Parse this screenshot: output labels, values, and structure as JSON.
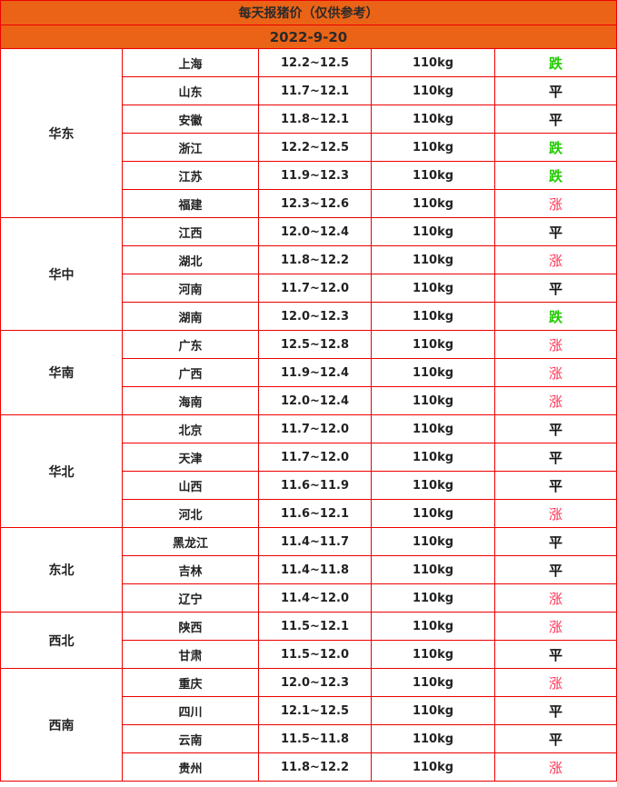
{
  "title": "每天报猪价（仅供参考）",
  "date": "2022-9-20",
  "colors": {
    "header_bg": "#EB6316",
    "border": "#EE0000",
    "down": "#22CC00",
    "up": "#FF3355",
    "flat": "#111111"
  },
  "regions": [
    {
      "name": "华东",
      "rows": [
        {
          "province": "上海",
          "price": "12.2~12.5",
          "weight": "110kg",
          "trend": "跌"
        },
        {
          "province": "山东",
          "price": "11.7~12.1",
          "weight": "110kg",
          "trend": "平"
        },
        {
          "province": "安徽",
          "price": "11.8~12.1",
          "weight": "110kg",
          "trend": "平"
        },
        {
          "province": "浙江",
          "price": "12.2~12.5",
          "weight": "110kg",
          "trend": "跌"
        },
        {
          "province": "江苏",
          "price": "11.9~12.3",
          "weight": "110kg",
          "trend": "跌"
        },
        {
          "province": "福建",
          "price": "12.3~12.6",
          "weight": "110kg",
          "trend": "涨"
        }
      ]
    },
    {
      "name": "华中",
      "rows": [
        {
          "province": "江西",
          "price": "12.0~12.4",
          "weight": "110kg",
          "trend": "平"
        },
        {
          "province": "湖北",
          "price": "11.8~12.2",
          "weight": "110kg",
          "trend": "涨"
        },
        {
          "province": "河南",
          "price": "11.7~12.0",
          "weight": "110kg",
          "trend": "平"
        },
        {
          "province": "湖南",
          "price": "12.0~12.3",
          "weight": "110kg",
          "trend": "跌"
        }
      ]
    },
    {
      "name": "华南",
      "rows": [
        {
          "province": "广东",
          "price": "12.5~12.8",
          "weight": "110kg",
          "trend": "涨"
        },
        {
          "province": "广西",
          "price": "11.9~12.4",
          "weight": "110kg",
          "trend": "涨"
        },
        {
          "province": "海南",
          "price": "12.0~12.4",
          "weight": "110kg",
          "trend": "涨"
        }
      ]
    },
    {
      "name": "华北",
      "rows": [
        {
          "province": "北京",
          "price": "11.7~12.0",
          "weight": "110kg",
          "trend": "平"
        },
        {
          "province": "天津",
          "price": "11.7~12.0",
          "weight": "110kg",
          "trend": "平"
        },
        {
          "province": "山西",
          "price": "11.6~11.9",
          "weight": "110kg",
          "trend": "平"
        },
        {
          "province": "河北",
          "price": "11.6~12.1",
          "weight": "110kg",
          "trend": "涨"
        }
      ]
    },
    {
      "name": "东北",
      "rows": [
        {
          "province": "黑龙江",
          "price": "11.4~11.7",
          "weight": "110kg",
          "trend": "平"
        },
        {
          "province": "吉林",
          "price": "11.4~11.8",
          "weight": "110kg",
          "trend": "平"
        },
        {
          "province": "辽宁",
          "price": "11.4~12.0",
          "weight": "110kg",
          "trend": "涨"
        }
      ]
    },
    {
      "name": "西北",
      "rows": [
        {
          "province": "陕西",
          "price": "11.5~12.1",
          "weight": "110kg",
          "trend": "涨"
        },
        {
          "province": "甘肃",
          "price": "11.5~12.0",
          "weight": "110kg",
          "trend": "平"
        }
      ]
    },
    {
      "name": "西南",
      "rows": [
        {
          "province": "重庆",
          "price": "12.0~12.3",
          "weight": "110kg",
          "trend": "涨"
        },
        {
          "province": "四川",
          "price": "12.1~12.5",
          "weight": "110kg",
          "trend": "平"
        },
        {
          "province": "云南",
          "price": "11.5~11.8",
          "weight": "110kg",
          "trend": "平"
        },
        {
          "province": "贵州",
          "price": "11.8~12.2",
          "weight": "110kg",
          "trend": "涨"
        }
      ]
    }
  ]
}
